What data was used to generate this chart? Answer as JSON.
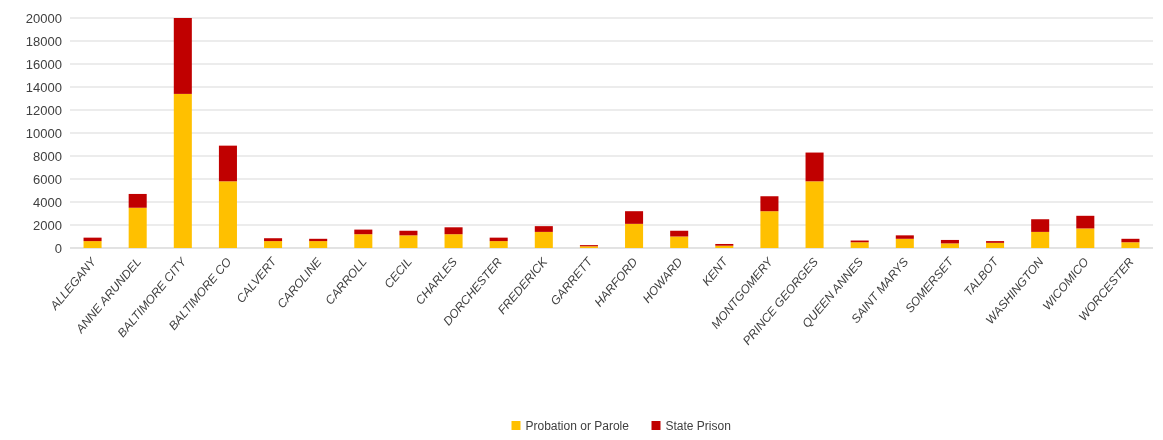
{
  "chart_data": {
    "type": "bar",
    "stacked": true,
    "categories": [
      "ALLEGANY",
      "ANNE ARUNDEL",
      "BALTIMORE CITY",
      "BALTIMORE CO",
      "CALVERT",
      "CAROLINE",
      "CARROLL",
      "CECIL",
      "CHARLES",
      "DORCHESTER",
      "FREDERICK",
      "GARRETT",
      "HARFORD",
      "HOWARD",
      "KENT",
      "MONTGOMERY",
      "PRINCE GEORGES",
      "QUEEN ANNES",
      "SAINT MARYS",
      "SOMERSET",
      "TALBOT",
      "WASHINGTON",
      "WICOMICO",
      "WORCESTER"
    ],
    "series": [
      {
        "name": "Probation or Parole",
        "color": "#ffc000",
        "values": [
          600,
          3500,
          13400,
          5800,
          600,
          600,
          1200,
          1100,
          1200,
          600,
          1400,
          150,
          2100,
          1000,
          200,
          3200,
          5800,
          500,
          800,
          400,
          450,
          1400,
          1700,
          500
        ]
      },
      {
        "name": "State Prison",
        "color": "#c00000",
        "values": [
          300,
          1200,
          6600,
          3100,
          250,
          200,
          400,
          400,
          600,
          300,
          500,
          100,
          1100,
          500,
          150,
          1300,
          2500,
          150,
          300,
          300,
          150,
          1100,
          1100,
          300
        ]
      }
    ],
    "ylim": [
      0,
      20000
    ],
    "yticks": [
      0,
      2000,
      4000,
      6000,
      8000,
      10000,
      12000,
      14000,
      16000,
      18000,
      20000
    ],
    "grid": "y",
    "legend": "bottom"
  }
}
